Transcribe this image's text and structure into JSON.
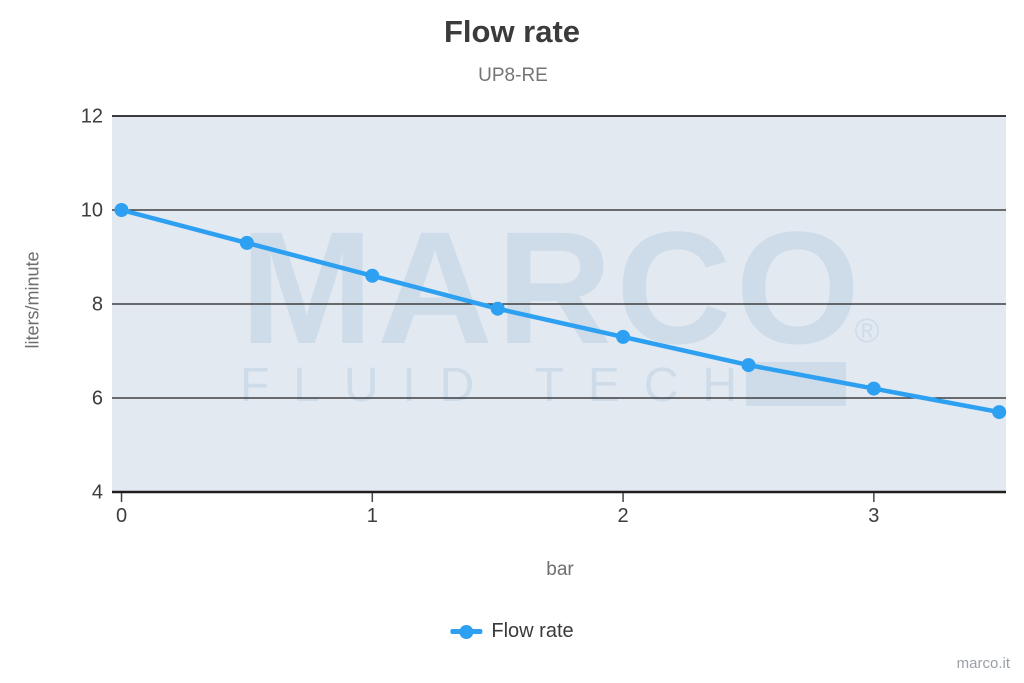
{
  "chart_data": {
    "type": "line",
    "title": "Flow rate",
    "subtitle": "UP8-RE",
    "xlabel": "bar",
    "ylabel": "liters/minute",
    "x": [
      0,
      0.5,
      1,
      1.5,
      2,
      2.5,
      3,
      3.5
    ],
    "series": [
      {
        "name": "Flow rate",
        "values": [
          10,
          9.3,
          8.6,
          7.9,
          7.3,
          6.7,
          6.2,
          5.7
        ]
      }
    ],
    "xticks": [
      0,
      1,
      2,
      3
    ],
    "yticks": [
      4,
      6,
      8,
      10,
      12
    ],
    "xlim": [
      -0.038,
      3.527
    ],
    "ylim": [
      4,
      12
    ],
    "grid": "horizontal-only",
    "legend_position": "bottom",
    "colors": {
      "line": "#2da0f2",
      "plot_background": "#e3e9f1",
      "gridline": "#1f1f1f",
      "tick_label": "#3d3d3d",
      "watermark": "#cedcea"
    },
    "watermark": {
      "line1": "MARCO",
      "registered": "®",
      "line2": "FLUID TECH"
    }
  },
  "legend": {
    "items": [
      {
        "label": "Flow rate"
      }
    ]
  },
  "footer": {
    "credit": "marco.it"
  }
}
